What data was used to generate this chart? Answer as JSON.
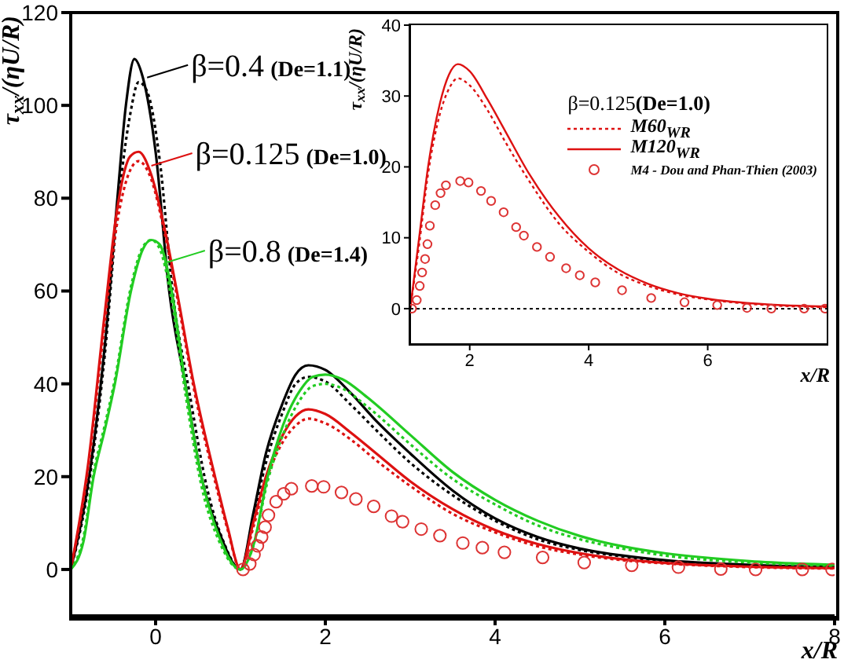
{
  "chart_data": [
    {
      "type": "line",
      "xlabel": "x/R",
      "ylabel": "τ$_{xx}$/(ηU/R)",
      "xlim": [
        -1,
        8
      ],
      "xticks": [
        0,
        2,
        4,
        6,
        8
      ],
      "ylim": [
        -10,
        120
      ],
      "yticks": [
        0,
        20,
        40,
        60,
        80,
        100,
        120
      ],
      "legend": false,
      "annotations": [
        {
          "text": "β=0.4 (De=1.1)",
          "x": -0.1,
          "y": 106
        },
        {
          "text": "β=0.125 (De=1.0)",
          "x": -0.05,
          "y": 87
        },
        {
          "text": "β=0.8 (De=1.4)",
          "x": 0.1,
          "y": 66
        }
      ],
      "series": [
        {
          "color": "#000000",
          "line_style": "solid",
          "x": [
            -1,
            -0.8,
            -0.6,
            -0.45,
            -0.35,
            -0.25,
            -0.15,
            0,
            0.16,
            0.35,
            0.54,
            0.75,
            1,
            1.15,
            1.3,
            1.5,
            1.65,
            1.8,
            2,
            2.3,
            2.6,
            3,
            3.5,
            4,
            4.5,
            5,
            5.5,
            6,
            7,
            8
          ],
          "values": [
            0,
            18,
            48,
            80,
            100,
            110,
            106,
            90,
            60,
            40,
            20,
            8,
            0,
            12,
            25,
            36,
            42,
            44,
            43,
            38,
            32,
            25,
            17,
            11,
            7,
            4.5,
            3,
            2,
            1,
            0.5
          ]
        },
        {
          "color": "#000000",
          "line_style": "dotted",
          "x": [
            -1,
            -0.8,
            -0.6,
            -0.45,
            -0.3,
            -0.2,
            -0.1,
            0.05,
            0.2,
            0.4,
            0.6,
            0.8,
            1,
            1.15,
            1.3,
            1.5,
            1.65,
            1.8,
            2,
            2.3,
            2.6,
            3,
            3.5,
            4,
            4.5,
            5,
            5.5,
            6,
            7,
            8
          ],
          "values": [
            0,
            17,
            46,
            77,
            98,
            105,
            103,
            88,
            60,
            38,
            18,
            6,
            0,
            11,
            23,
            34,
            40,
            41.5,
            40.5,
            35.5,
            30,
            23,
            16,
            10.5,
            6.5,
            4.2,
            2.8,
            1.8,
            0.9,
            0.4
          ]
        },
        {
          "color": "#dd1111",
          "line_style": "solid",
          "x": [
            -1,
            -0.8,
            -0.6,
            -0.45,
            -0.3,
            -0.2,
            -0.05,
            0.1,
            0.25,
            0.45,
            0.7,
            0.85,
            1,
            1.15,
            1.3,
            1.5,
            1.65,
            1.8,
            2,
            2.3,
            2.6,
            3,
            3.5,
            4,
            4.5,
            5,
            5.5,
            6,
            7,
            8
          ],
          "values": [
            0,
            22,
            55,
            78,
            89,
            90,
            85,
            74,
            60,
            40,
            20,
            9,
            0,
            10,
            20,
            29,
            33,
            34.5,
            33.5,
            29.5,
            25,
            19,
            13,
            8.5,
            5.5,
            3.5,
            2.2,
            1.4,
            0.6,
            0.3
          ]
        },
        {
          "color": "#dd1111",
          "line_style": "dotted",
          "x": [
            -1,
            -0.8,
            -0.6,
            -0.45,
            -0.3,
            -0.2,
            -0.05,
            0.1,
            0.25,
            0.45,
            0.7,
            0.85,
            1,
            1.15,
            1.3,
            1.5,
            1.65,
            1.8,
            2,
            2.3,
            2.6,
            3,
            3.5,
            4,
            4.5,
            5,
            5.5,
            6,
            7,
            8
          ],
          "values": [
            0,
            21,
            53,
            75,
            86,
            88,
            84,
            73,
            59,
            39,
            19,
            8.5,
            0,
            9,
            19,
            27.5,
            31,
            32.5,
            31.5,
            28,
            23.5,
            18,
            12,
            8,
            5,
            3.2,
            2,
            1.3,
            0.5,
            0.2
          ]
        },
        {
          "color": "#22cc22",
          "line_style": "solid",
          "x": [
            -1,
            -0.85,
            -0.73,
            -0.6,
            -0.48,
            -0.29,
            -0.15,
            -0.05,
            0.05,
            0.19,
            0.35,
            0.54,
            0.75,
            1,
            1.15,
            1.32,
            1.5,
            1.7,
            1.85,
            2,
            2.2,
            2.5,
            3,
            3.5,
            4,
            4.5,
            5,
            5.5,
            6,
            7,
            8
          ],
          "values": [
            0,
            6,
            20,
            30,
            40,
            60,
            69,
            71,
            70,
            60,
            40,
            20,
            7,
            0,
            5,
            20,
            31,
            38.5,
            41.5,
            42,
            41,
            37,
            29,
            21,
            15,
            10.5,
            7.2,
            5,
            3.5,
            1.8,
            1
          ]
        },
        {
          "color": "#22cc22",
          "line_style": "dotted",
          "x": [
            -1,
            -0.85,
            -0.73,
            -0.6,
            -0.48,
            -0.29,
            -0.15,
            -0.05,
            0.05,
            0.19,
            0.35,
            0.54,
            0.75,
            1,
            1.15,
            1.32,
            1.5,
            1.7,
            1.85,
            2,
            2.2,
            2.5,
            3,
            3.5,
            4,
            4.5,
            5,
            5.5,
            6,
            7,
            8
          ],
          "values": [
            0,
            7,
            21,
            31,
            41,
            61,
            69.5,
            71,
            69,
            58,
            38,
            18,
            6,
            0,
            5,
            19,
            29,
            36.5,
            39.5,
            40,
            39,
            35,
            27,
            19.5,
            14,
            9.5,
            6.5,
            4.5,
            3,
            1.5,
            0.8
          ]
        },
        {
          "type": "scatter",
          "color": "#dd3333",
          "marker": "circle",
          "x": [
            1.03,
            1.11,
            1.16,
            1.2,
            1.25,
            1.29,
            1.33,
            1.42,
            1.51,
            1.6,
            1.84,
            1.98,
            2.19,
            2.36,
            2.57,
            2.78,
            2.91,
            3.13,
            3.35,
            3.62,
            3.85,
            4.11,
            4.56,
            5.05,
            5.61,
            6.16,
            6.66,
            7.07,
            7.62,
            7.97
          ],
          "values": [
            0,
            1.2,
            3.2,
            5.1,
            7,
            9.1,
            11.7,
            14.6,
            16.3,
            17.4,
            18,
            17.8,
            16.6,
            15.2,
            13.6,
            11.5,
            10.3,
            8.7,
            7.3,
            5.7,
            4.7,
            3.7,
            2.6,
            1.5,
            0.9,
            0.5,
            0.1,
            0,
            0,
            0
          ]
        }
      ]
    },
    {
      "type": "line",
      "xlabel": "x/R",
      "ylabel": "τ$_{xx}$/(ηU/R)",
      "xlim": [
        1,
        8
      ],
      "xticks": [
        2,
        4,
        6
      ],
      "ylim": [
        -5,
        40
      ],
      "yticks": [
        0,
        10,
        20,
        30,
        40
      ],
      "legend": "top right",
      "legend_title": "β=0.125(De=1.0)",
      "ref_lines": [
        {
          "axis": "y",
          "value": 0,
          "color": "#000000",
          "line_style": "dotted"
        }
      ],
      "series": [
        {
          "name": "M60$_{WR}$",
          "color": "#dd1111",
          "line_style": "dotted",
          "x": [
            1,
            1.15,
            1.3,
            1.5,
            1.65,
            1.8,
            2,
            2.3,
            2.6,
            3,
            3.5,
            4,
            4.5,
            5,
            5.5,
            6,
            7,
            8
          ],
          "values": [
            0,
            9,
            19,
            27.5,
            31,
            32.5,
            31.5,
            28,
            23.5,
            18,
            12,
            8,
            5,
            3.2,
            2,
            1.3,
            0.5,
            0.2
          ]
        },
        {
          "name": "M120$_{WR}$",
          "color": "#dd1111",
          "line_style": "solid",
          "x": [
            1,
            1.15,
            1.3,
            1.5,
            1.65,
            1.8,
            2,
            2.3,
            2.6,
            3,
            3.5,
            4,
            4.5,
            5,
            5.5,
            6,
            7,
            8
          ],
          "values": [
            0,
            10,
            20,
            29,
            33,
            34.5,
            33.5,
            29.5,
            25,
            19,
            13,
            8.5,
            5.5,
            3.5,
            2.2,
            1.4,
            0.6,
            0.3
          ]
        },
        {
          "type": "scatter",
          "name": "M4 - Dou and Phan-Thien (2003)",
          "color": "#dd3333",
          "marker": "circle",
          "x": [
            1.03,
            1.11,
            1.16,
            1.2,
            1.25,
            1.29,
            1.33,
            1.42,
            1.51,
            1.6,
            1.84,
            1.98,
            2.19,
            2.36,
            2.57,
            2.78,
            2.91,
            3.13,
            3.35,
            3.62,
            3.85,
            4.11,
            4.56,
            5.05,
            5.61,
            6.16,
            6.66,
            7.07,
            7.62,
            7.97
          ],
          "values": [
            0,
            1.2,
            3.2,
            5.1,
            7,
            9.1,
            11.7,
            14.6,
            16.3,
            17.4,
            18,
            17.8,
            16.6,
            15.2,
            13.6,
            11.5,
            10.3,
            8.7,
            7.3,
            5.7,
            4.7,
            3.7,
            2.6,
            1.5,
            0.9,
            0.5,
            0.1,
            0,
            0,
            0
          ]
        }
      ]
    }
  ]
}
